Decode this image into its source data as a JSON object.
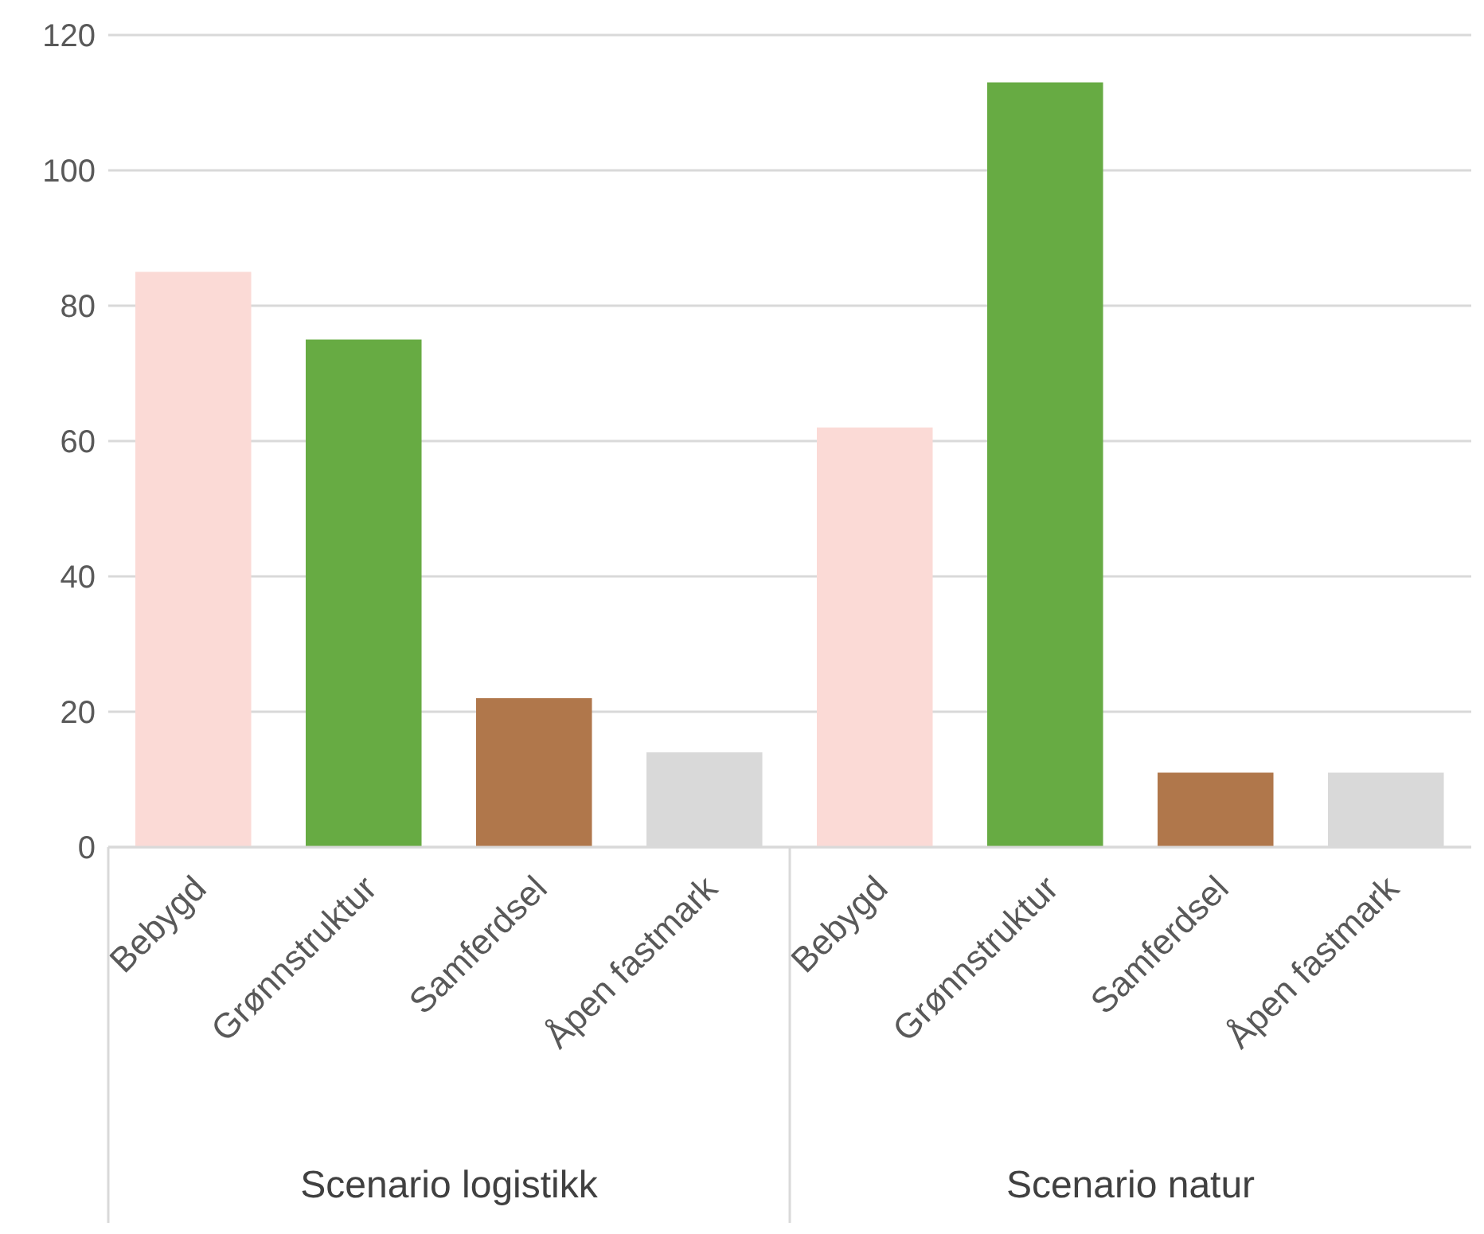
{
  "chart_data": {
    "type": "bar",
    "categories": [
      "Bebygd",
      "Grønnstruktur",
      "Samferdsel",
      "Åpen fastmark",
      "Bebygd",
      "Grønnstruktur",
      "Samferdsel",
      "Åpen fastmark"
    ],
    "values": [
      85,
      75,
      22,
      14,
      62,
      113,
      11,
      11
    ],
    "colors": [
      "#fbdad6",
      "#67ab43",
      "#b0774b",
      "#d9d9d9",
      "#fbdad6",
      "#67ab43",
      "#b0774b",
      "#d9d9d9"
    ],
    "annotations": [
      "Scenario logistikk",
      "Scenario natur"
    ],
    "ylim": [
      0,
      120
    ],
    "yticks": [
      0,
      20,
      40,
      60,
      80,
      100,
      120
    ],
    "grid": "y",
    "legend": false
  }
}
